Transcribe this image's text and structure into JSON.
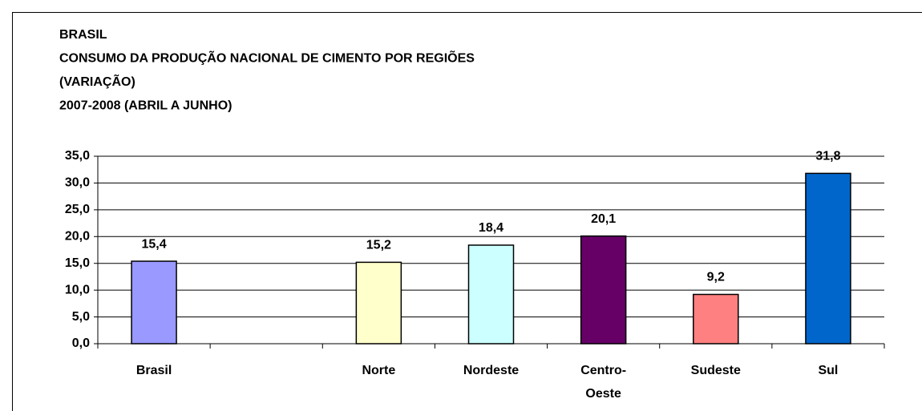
{
  "chart_data": {
    "type": "bar",
    "title": [
      "BRASIL",
      "CONSUMO DA PRODUÇÃO NACIONAL DE CIMENTO POR REGIÕES",
      "(VARIAÇÃO)",
      "2007-2008 (ABRIL A JUNHO)"
    ],
    "categories": [
      "Brasil",
      null,
      "Norte",
      "Nordeste",
      "Centro-Oeste",
      "Sudeste",
      "Sul"
    ],
    "values": [
      15.4,
      null,
      15.2,
      18.4,
      20.1,
      9.2,
      31.8
    ],
    "value_labels": [
      "15,4",
      null,
      "15,2",
      "18,4",
      "20,1",
      "9,2",
      "31,8"
    ],
    "colors": [
      "#9999ff",
      null,
      "#ffffcc",
      "#ccffff",
      "#660066",
      "#ff8080",
      "#0066cc"
    ],
    "ylim": [
      0,
      35
    ],
    "yticks": [
      {
        "value": 0,
        "label": "0,0"
      },
      {
        "value": 5,
        "label": "5,0"
      },
      {
        "value": 10,
        "label": "10,0"
      },
      {
        "value": 15,
        "label": "15,0"
      },
      {
        "value": 20,
        "label": "20,0"
      },
      {
        "value": 25,
        "label": "25,0"
      },
      {
        "value": 30,
        "label": "30,0"
      },
      {
        "value": 35,
        "label": "35,0"
      }
    ],
    "grid": true
  }
}
